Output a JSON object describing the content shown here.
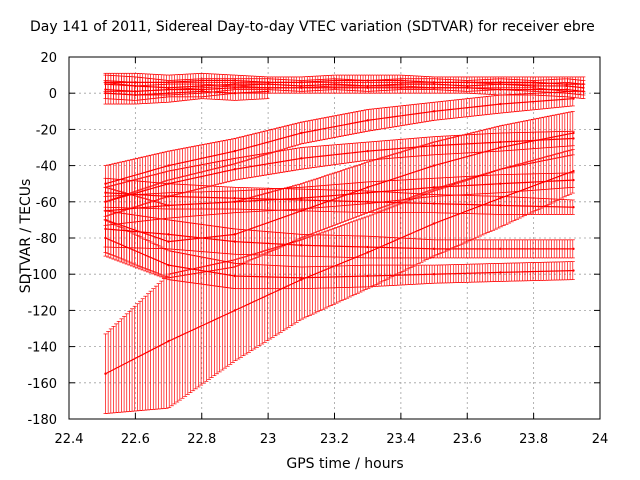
{
  "chart_data": {
    "type": "scatter",
    "title": "Day 141 of 2011, Sidereal Day-to-day VTEC variation (SDTVAR) for receiver ebre",
    "xlabel": "GPS time / hours",
    "ylabel": "SDTVAR / TECUs",
    "xlim": [
      22.4,
      24
    ],
    "ylim": [
      -180,
      20
    ],
    "xticks": [
      "22.4",
      "22.6",
      "22.8",
      "23",
      "23.2",
      "23.4",
      "23.6",
      "23.8",
      "24"
    ],
    "yticks": [
      "-180",
      "-160",
      "-140",
      "-120",
      "-100",
      "-80",
      "-60",
      "-40",
      "-20",
      "0",
      "20"
    ],
    "grid": true,
    "legend": "none",
    "color": "#ff0000",
    "error_bars": true,
    "series": [
      {
        "x": [
          22.51,
          22.7,
          22.9,
          23.1,
          23.3,
          23.5,
          23.7,
          23.92
        ],
        "y": [
          -155,
          -137,
          -120,
          -103,
          -88,
          -72,
          -58,
          -43
        ],
        "err": [
          22,
          37,
          28,
          22,
          20,
          18,
          16,
          12
        ]
      },
      {
        "x": [
          22.51,
          22.7,
          22.9,
          23.1,
          23.3,
          23.5,
          23.7,
          23.92
        ],
        "y": [
          -70,
          -82,
          -78,
          -65,
          -52,
          -40,
          -30,
          -22
        ],
        "err": [
          18,
          20,
          18,
          15,
          14,
          13,
          12,
          12
        ]
      },
      {
        "x": [
          22.51,
          22.7,
          22.9,
          23.1,
          23.3,
          23.5,
          23.7,
          23.92
        ],
        "y": [
          -50,
          -40,
          -32,
          -22,
          -15,
          -10,
          -6,
          -3
        ],
        "err": [
          10,
          8,
          7,
          6,
          6,
          5,
          5,
          4
        ]
      },
      {
        "x": [
          22.51,
          22.7,
          22.9,
          23.1,
          23.3,
          23.5,
          23.7,
          23.92
        ],
        "y": [
          -60,
          -50,
          -42,
          -36,
          -32,
          -29,
          -27,
          -25
        ],
        "err": [
          8,
          7,
          6,
          6,
          5,
          5,
          5,
          4
        ]
      },
      {
        "x": [
          22.51,
          22.7,
          22.9,
          23.1,
          23.3,
          23.5,
          23.7,
          23.92
        ],
        "y": [
          -65,
          -62,
          -60,
          -58,
          -55,
          -52,
          -50,
          -48
        ],
        "err": [
          8,
          7,
          6,
          6,
          6,
          5,
          5,
          4
        ]
      },
      {
        "x": [
          22.51,
          22.7,
          22.9,
          23.1,
          23.3,
          23.5,
          23.7,
          23.92
        ],
        "y": [
          -55,
          -57,
          -58,
          -59,
          -60,
          -61,
          -62,
          -63
        ],
        "err": [
          8,
          7,
          6,
          6,
          6,
          5,
          5,
          4
        ]
      },
      {
        "x": [
          22.51,
          22.7,
          22.9,
          23.1,
          23.3,
          23.5,
          23.7,
          23.92
        ],
        "y": [
          -75,
          -78,
          -82,
          -84,
          -85,
          -86,
          -86,
          -86
        ],
        "err": [
          10,
          8,
          7,
          6,
          6,
          5,
          5,
          5
        ]
      },
      {
        "x": [
          22.51,
          22.7,
          22.9,
          23.1,
          23.3,
          23.5,
          23.7,
          23.92
        ],
        "y": [
          -80,
          -95,
          -101,
          -102,
          -101,
          -100,
          -99,
          -98
        ],
        "err": [
          10,
          8,
          7,
          6,
          6,
          5,
          5,
          5
        ]
      },
      {
        "x": [
          22.51,
          22.6,
          22.7,
          22.8,
          22.9,
          23.0,
          23.1,
          23.2,
          23.3,
          23.4,
          23.5,
          23.6,
          23.7,
          23.8,
          23.9,
          23.95
        ],
        "y": [
          5,
          4,
          3,
          4,
          5,
          5,
          4,
          5,
          4,
          5,
          5,
          4,
          5,
          4,
          4,
          3
        ],
        "err": [
          5,
          5,
          4,
          4,
          3,
          3,
          3,
          3,
          3,
          3,
          3,
          3,
          3,
          3,
          4,
          4
        ]
      },
      {
        "x": [
          22.51,
          22.6,
          22.7,
          22.8,
          22.9,
          23.0,
          23.1,
          23.2,
          23.3,
          23.4,
          23.5,
          23.6,
          23.7,
          23.8,
          23.9,
          23.95
        ],
        "y": [
          2,
          1,
          2,
          2,
          3,
          3,
          3,
          3,
          3,
          3,
          3,
          3,
          2,
          2,
          2,
          1
        ],
        "err": [
          5,
          5,
          4,
          4,
          3,
          3,
          3,
          3,
          3,
          3,
          3,
          3,
          3,
          3,
          4,
          4
        ]
      },
      {
        "x": [
          22.51,
          22.6,
          22.7,
          22.8,
          22.9,
          23.0,
          23.1,
          23.2,
          23.3,
          23.4,
          23.5,
          23.6,
          23.7,
          23.8,
          23.9,
          23.95
        ],
        "y": [
          6,
          6,
          6,
          7,
          7,
          6,
          6,
          7,
          7,
          7,
          6,
          6,
          6,
          6,
          5,
          5
        ],
        "err": [
          5,
          5,
          4,
          4,
          3,
          3,
          3,
          3,
          3,
          3,
          3,
          3,
          3,
          3,
          4,
          4
        ]
      },
      {
        "x": [
          22.51,
          22.6,
          22.7,
          22.8,
          22.9,
          23.0
        ],
        "y": [
          0,
          -1,
          0,
          1,
          0,
          1
        ],
        "err": [
          6,
          5,
          5,
          4,
          4,
          4
        ]
      }
    ]
  }
}
